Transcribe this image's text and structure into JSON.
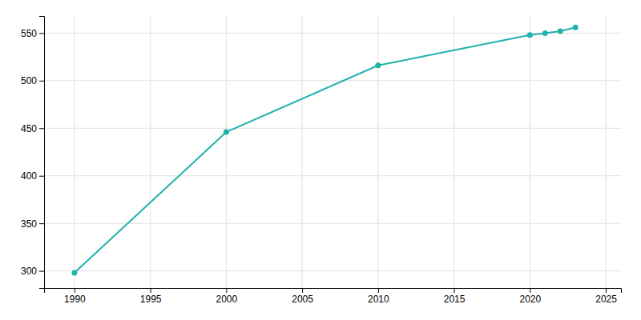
{
  "chart_data": {
    "type": "line",
    "x": [
      1990,
      2000,
      2010,
      2020,
      2021,
      2022,
      2023
    ],
    "values": [
      298,
      446,
      516,
      548,
      550,
      552,
      556
    ],
    "color": "#20B2AA",
    "marker": "circle",
    "xlim": [
      1988,
      2026
    ],
    "ylim": [
      282,
      568
    ],
    "xticks": [
      1990,
      1995,
      2000,
      2005,
      2010,
      2015,
      2020,
      2025
    ],
    "yticks": [
      300,
      350,
      400,
      450,
      500,
      550
    ],
    "grid": true
  }
}
